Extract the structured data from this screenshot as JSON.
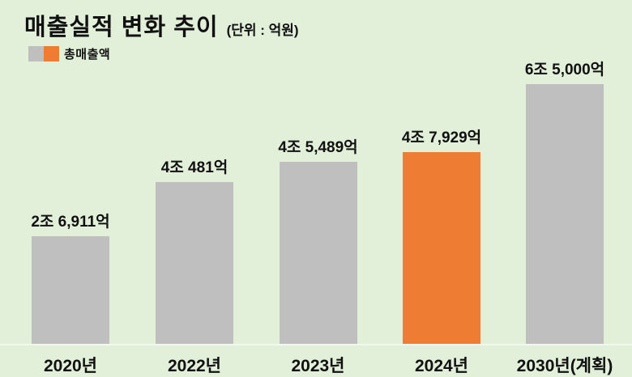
{
  "header": {
    "title": "매출실적 변화 추이",
    "unit": "(단위 : 억원)"
  },
  "legend": {
    "label": "총매출액",
    "swatches": [
      {
        "name": "gray-swatch",
        "color": "#bfbfbf"
      },
      {
        "name": "orange-swatch",
        "color": "#ee7d33"
      }
    ]
  },
  "chart_data": {
    "type": "bar",
    "title": "매출실적 변화 추이",
    "subtitle": "(단위 : 억원)",
    "legend_label": "총매출액",
    "legend_position": "top-left",
    "categories": [
      "2020년",
      "2022년",
      "2023년",
      "2024년",
      "2030년(계획)"
    ],
    "values": [
      26911,
      40481,
      45489,
      47929,
      65000
    ],
    "value_labels": [
      "2조 6,911억",
      "4조 481억",
      "4조 5,489억",
      "4조 7,929억",
      "6조 5,000억"
    ],
    "highlight_index": 3,
    "bar_color": "#bfbfbf",
    "highlight_color": "#ee7d33",
    "background_color": "#e2efd9",
    "text_color": "#111111",
    "ylim": [
      0,
      65000
    ],
    "grid": false,
    "xlabel": "",
    "ylabel": ""
  }
}
